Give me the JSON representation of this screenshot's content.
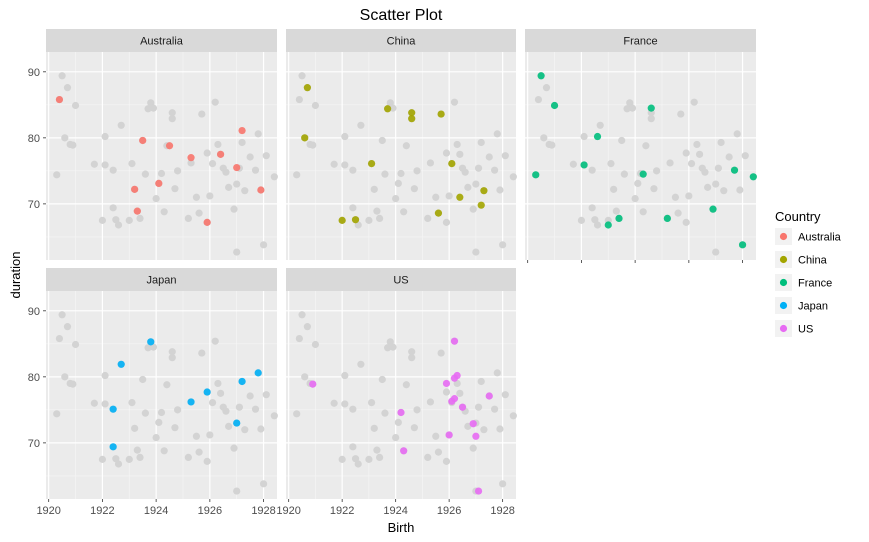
{
  "chart_data": {
    "type": "scatter",
    "title": "Scatter Plot",
    "xlabel": "Birth",
    "ylabel": "duration",
    "xlim": [
      1919.9,
      1928.5
    ],
    "ylim": [
      61.5,
      93
    ],
    "x_ticks": [
      1920,
      1922,
      1924,
      1926,
      1928
    ],
    "y_ticks": [
      70,
      80,
      90
    ],
    "grid": true,
    "legend_placement": "right",
    "legend_title": "Country",
    "background_point_color": "#d3d3d3",
    "panels": [
      {
        "strip": "Australia",
        "name": "Australia",
        "color": "#F8766D",
        "points": [
          [
            1920.4,
            85.8
          ],
          [
            1923.2,
            72.2
          ],
          [
            1923.3,
            68.9
          ],
          [
            1923.5,
            79.6
          ],
          [
            1924.1,
            73.1
          ],
          [
            1924.5,
            78.8
          ],
          [
            1925.3,
            77.0
          ],
          [
            1925.9,
            67.2
          ],
          [
            1926.4,
            77.5
          ],
          [
            1927.0,
            75.5
          ],
          [
            1927.2,
            81.1
          ],
          [
            1927.9,
            72.1
          ]
        ]
      },
      {
        "strip": "China",
        "name": "China",
        "color": "#A3A500",
        "points": [
          [
            1920.6,
            80.0
          ],
          [
            1920.7,
            87.6
          ],
          [
            1922.0,
            67.5
          ],
          [
            1922.5,
            67.6
          ],
          [
            1923.1,
            76.1
          ],
          [
            1923.7,
            84.4
          ],
          [
            1924.6,
            82.9
          ],
          [
            1924.6,
            83.8
          ],
          [
            1925.6,
            68.6
          ],
          [
            1925.7,
            83.6
          ],
          [
            1926.1,
            76.1
          ],
          [
            1926.4,
            71.0
          ],
          [
            1927.2,
            69.8
          ],
          [
            1927.3,
            72.0
          ]
        ]
      },
      {
        "strip": "France",
        "name": "France",
        "color": "#00BF7D",
        "points": [
          [
            1920.3,
            74.4
          ],
          [
            1920.5,
            89.4
          ],
          [
            1921.0,
            84.9
          ],
          [
            1922.1,
            75.9
          ],
          [
            1922.6,
            80.2
          ],
          [
            1923.0,
            66.8
          ],
          [
            1923.4,
            67.8
          ],
          [
            1924.3,
            74.5
          ],
          [
            1924.6,
            84.5
          ],
          [
            1925.2,
            67.8
          ],
          [
            1926.9,
            69.2
          ],
          [
            1927.7,
            75.1
          ],
          [
            1928.0,
            63.8
          ],
          [
            1928.4,
            74.1
          ]
        ]
      },
      {
        "strip": "Japan",
        "name": "Japan",
        "color": "#00B0F6",
        "points": [
          [
            1922.4,
            69.4
          ],
          [
            1922.4,
            75.1
          ],
          [
            1922.7,
            81.9
          ],
          [
            1923.8,
            85.3
          ],
          [
            1925.3,
            76.2
          ],
          [
            1925.9,
            77.7
          ],
          [
            1927.0,
            73.0
          ],
          [
            1927.2,
            79.3
          ],
          [
            1927.8,
            80.6
          ]
        ]
      },
      {
        "strip": "US",
        "name": "US",
        "color": "#E76BF3",
        "points": [
          [
            1920.9,
            78.9
          ],
          [
            1924.2,
            74.6
          ],
          [
            1924.3,
            68.8
          ],
          [
            1925.9,
            79.0
          ],
          [
            1926.0,
            71.2
          ],
          [
            1926.1,
            76.3
          ],
          [
            1926.2,
            79.8
          ],
          [
            1926.2,
            76.7
          ],
          [
            1926.2,
            85.4
          ],
          [
            1926.3,
            80.2
          ],
          [
            1926.5,
            75.4
          ],
          [
            1926.9,
            72.9
          ],
          [
            1927.0,
            71.0
          ],
          [
            1927.1,
            62.7
          ],
          [
            1927.5,
            77.1
          ]
        ]
      }
    ],
    "background_points": [
      [
        1920.3,
        74.4
      ],
      [
        1920.4,
        85.8
      ],
      [
        1920.5,
        89.4
      ],
      [
        1920.6,
        80.0
      ],
      [
        1920.7,
        87.6
      ],
      [
        1920.8,
        79.0
      ],
      [
        1920.9,
        78.9
      ],
      [
        1921.0,
        84.9
      ],
      [
        1921.7,
        76.0
      ],
      [
        1922.0,
        67.5
      ],
      [
        1922.1,
        75.9
      ],
      [
        1922.1,
        80.2
      ],
      [
        1922.4,
        69.4
      ],
      [
        1922.4,
        75.1
      ],
      [
        1922.5,
        67.6
      ],
      [
        1922.6,
        66.8
      ],
      [
        1922.7,
        81.9
      ],
      [
        1923.0,
        67.5
      ],
      [
        1923.1,
        76.1
      ],
      [
        1923.2,
        72.2
      ],
      [
        1923.3,
        68.9
      ],
      [
        1923.4,
        67.8
      ],
      [
        1923.5,
        79.6
      ],
      [
        1923.6,
        74.5
      ],
      [
        1923.7,
        84.4
      ],
      [
        1923.8,
        85.3
      ],
      [
        1923.9,
        84.5
      ],
      [
        1924.0,
        70.8
      ],
      [
        1924.1,
        73.1
      ],
      [
        1924.2,
        74.6
      ],
      [
        1924.3,
        68.8
      ],
      [
        1924.4,
        78.8
      ],
      [
        1924.6,
        82.9
      ],
      [
        1924.6,
        83.8
      ],
      [
        1924.7,
        72.3
      ],
      [
        1924.8,
        75.0
      ],
      [
        1925.2,
        67.8
      ],
      [
        1925.3,
        76.2
      ],
      [
        1925.5,
        71.0
      ],
      [
        1925.6,
        68.6
      ],
      [
        1925.7,
        83.6
      ],
      [
        1925.9,
        77.7
      ],
      [
        1925.9,
        67.2
      ],
      [
        1926.0,
        71.2
      ],
      [
        1926.1,
        76.1
      ],
      [
        1926.2,
        85.4
      ],
      [
        1926.3,
        79.0
      ],
      [
        1926.4,
        77.5
      ],
      [
        1926.5,
        75.4
      ],
      [
        1926.6,
        74.8
      ],
      [
        1926.7,
        72.5
      ],
      [
        1926.9,
        69.2
      ],
      [
        1927.0,
        73.0
      ],
      [
        1927.0,
        62.7
      ],
      [
        1927.1,
        75.4
      ],
      [
        1927.2,
        79.3
      ],
      [
        1927.3,
        72.0
      ],
      [
        1927.5,
        77.1
      ],
      [
        1927.7,
        75.1
      ],
      [
        1927.8,
        80.6
      ],
      [
        1927.9,
        72.1
      ],
      [
        1928.0,
        63.8
      ],
      [
        1928.1,
        77.3
      ],
      [
        1928.4,
        74.1
      ]
    ]
  }
}
